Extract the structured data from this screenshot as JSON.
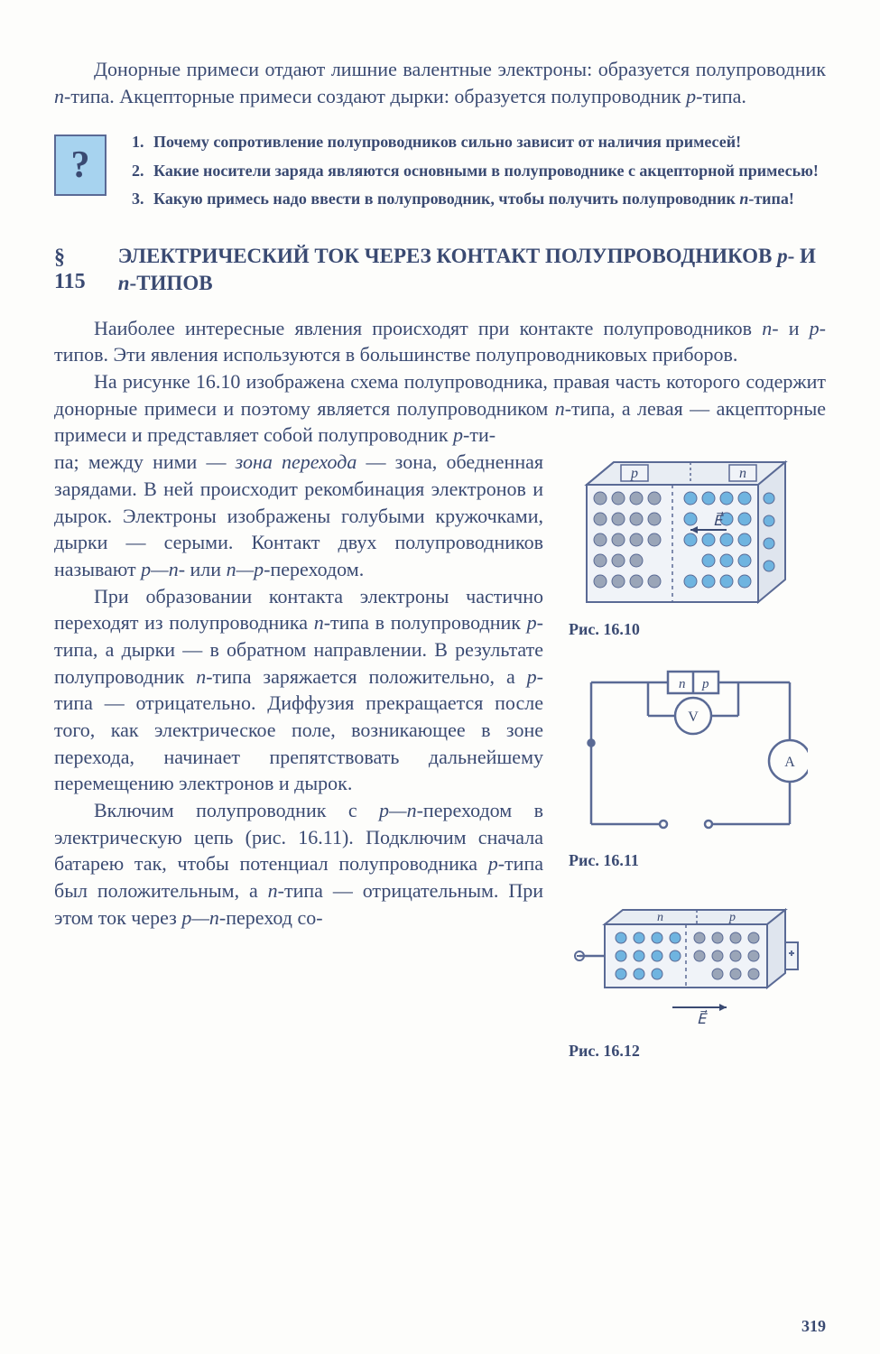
{
  "intro_html": "Донорные примеси отдают лишние валентные электроны: образуется полупроводник <i>n</i>-типа. Акцепторные примеси создают дырки: образуется полупроводник <i>p</i>-типа.",
  "question_icon": "?",
  "questions": [
    {
      "n": "1.",
      "text": "Почему сопротивление полупроводников сильно зависит от наличия примесей!"
    },
    {
      "n": "2.",
      "text": "Какие носители заряда являются основными в полупроводнике с акцепторной примесью!"
    },
    {
      "n": "3.",
      "text_html": "Какую примесь надо ввести в полупроводник, чтобы получить полупроводник <i>n</i>-типа!"
    }
  ],
  "section": {
    "num": "§ 115",
    "title_html": "ЭЛЕКТРИЧЕСКИЙ ТОК ЧЕРЕЗ КОНТАКТ ПОЛУПРОВОДНИКОВ <i>p</i>- И <i>n</i>-ТИПОВ"
  },
  "para1_html": "Наиболее интересные явления происходят при контакте полупроводников <i>n</i>- и <i>p</i>-типов. Эти явления используются в большинстве полупроводниковых приборов.",
  "para2a_html": "На рисунке 16.10 изображена схема полупроводника, правая часть которого содержит донорные примеси и поэтому является полупроводником <i>n</i>-типа, а левая — акцепторные примеси и представляет собой полупроводник <i>p</i>-ти-",
  "para2b_html": "па; между ними — <i>зона перехода</i> — зона, обедненная зарядами. В ней происходит рекомбинация электронов и дырок. Электроны изображены голубыми кружочками, дырки — серыми. Контакт двух полупроводников называют <i>p—n</i>- или <i>n—p</i>-переходом.",
  "para3_html": "При образовании контакта электроны частично переходят из полупроводника <i>n</i>-типа в полупроводник <i>p</i>-типа, а дырки — в обратном направлении. В результате полупроводник <i>n</i>-типа заряжается положительно, а <i>p</i>-типа — отрицательно. Диффузия прекращается после того, как электрическое поле, возникающее в зоне перехода, начинает препятствовать дальнейшему перемещению электронов и дырок.",
  "para4_html": "Включим полупроводник с <i>p—n</i>-переходом в электрическую цепь (рис. 16.11). Подключим сначала батарею так, чтобы потенциал полупроводника <i>p</i>-типа был положительным, а <i>n</i>-типа — отрицательным. При этом ток через <i>p—n</i>-переход со-",
  "figures": {
    "f1": {
      "caption": "Рис. 16.10",
      "labels": {
        "p": "p",
        "n": "n",
        "E": "E"
      },
      "colors": {
        "line": "#5a6a95",
        "fill": "#e8edf3",
        "hole": "#9aa5b8",
        "electron": "#6fb4e0"
      }
    },
    "f2": {
      "caption": "Рис. 16.11",
      "labels": {
        "n": "n",
        "p": "p",
        "V": "V",
        "A": "A"
      },
      "colors": {
        "line": "#5a6a95",
        "bg": "#fdfdfb"
      }
    },
    "f3": {
      "caption": "Рис. 16.12",
      "labels": {
        "n": "n",
        "p": "p",
        "E": "E"
      },
      "colors": {
        "line": "#5a6a95",
        "fill": "#e8edf3",
        "hole": "#9aa5b8",
        "electron": "#6fb4e0"
      }
    }
  },
  "page_number": "319"
}
